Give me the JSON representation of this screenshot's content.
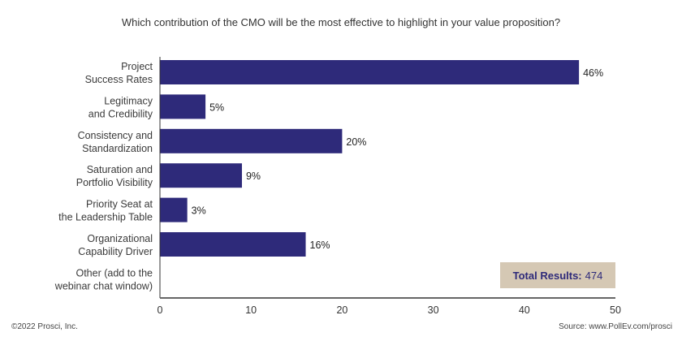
{
  "chart_data": {
    "type": "bar",
    "orientation": "horizontal",
    "title": "Which contribution of the CMO will be the most effective to highlight in your value proposition?",
    "categories": [
      [
        "Project",
        "Success Rates"
      ],
      [
        "Legitimacy",
        "and Credibility"
      ],
      [
        "Consistency and",
        "Standardization"
      ],
      [
        "Saturation and",
        "Portfolio Visibility"
      ],
      [
        "Priority Seat at",
        "the Leadership Table"
      ],
      [
        "Organizational",
        "Capability Driver"
      ],
      [
        "Other (add to the",
        "webinar chat window)"
      ]
    ],
    "values": [
      46,
      5,
      20,
      9,
      3,
      16,
      null
    ],
    "data_labels": [
      "46%",
      "5%",
      "20%",
      "9%",
      "3%",
      "16%",
      ""
    ],
    "xlim": [
      0,
      50
    ],
    "xticks": [
      0,
      10,
      20,
      30,
      40,
      50
    ],
    "grid": false,
    "bar_color": "#2e2a7a"
  },
  "total": {
    "label": "Total Results:",
    "value": "474"
  },
  "footer": {
    "copyright": "©2022 Prosci, Inc.",
    "source": "Source: www.PollEv.com/prosci"
  }
}
